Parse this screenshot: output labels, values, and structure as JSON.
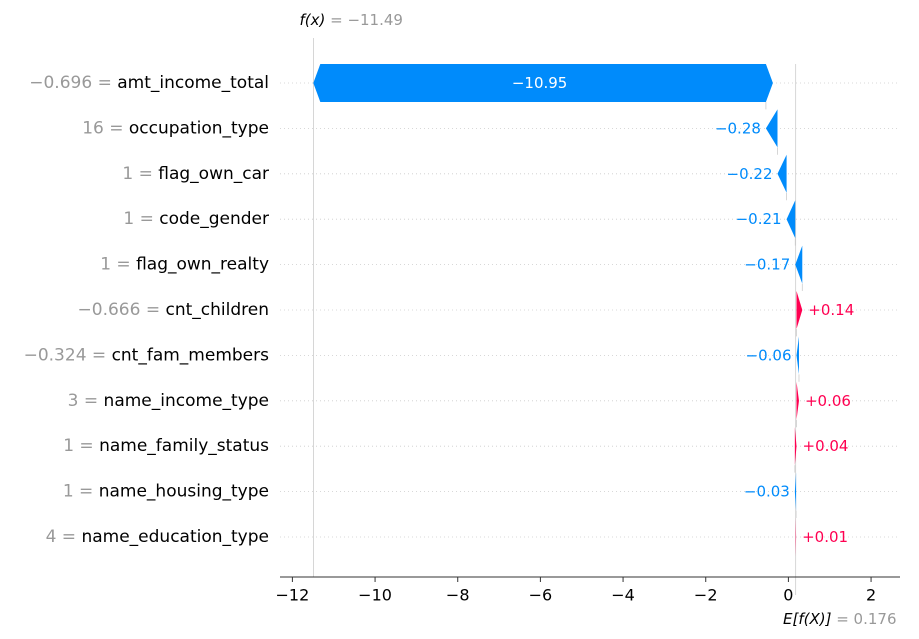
{
  "chart_data": {
    "type": "waterfall",
    "base_value": 0.176,
    "output_value": -11.49,
    "fx_label": "f(x)",
    "fx_value_text": "= −11.49",
    "efx_label": "E[f(X)]",
    "efx_value_text": "= 0.176",
    "xlim": [
      -12.3,
      2.7
    ],
    "x_ticks": [
      -12,
      -10,
      -8,
      -6,
      -4,
      -2,
      0,
      2
    ],
    "x_tick_labels": [
      "−12",
      "−10",
      "−8",
      "−6",
      "−4",
      "−2",
      "0",
      "2"
    ],
    "rows": [
      {
        "value_text": "−0.696 =",
        "feature": "amt_income_total",
        "contribution": -10.95,
        "label": "−10.95"
      },
      {
        "value_text": "16 =",
        "feature": "occupation_type",
        "contribution": -0.28,
        "label": "−0.28"
      },
      {
        "value_text": "1 =",
        "feature": "flag_own_car",
        "contribution": -0.22,
        "label": "−0.22"
      },
      {
        "value_text": "1 =",
        "feature": "code_gender",
        "contribution": -0.21,
        "label": "−0.21"
      },
      {
        "value_text": "1 =",
        "feature": "flag_own_realty",
        "contribution": -0.17,
        "label": "−0.17"
      },
      {
        "value_text": "−0.666 =",
        "feature": "cnt_children",
        "contribution": 0.14,
        "label": "+0.14"
      },
      {
        "value_text": "−0.324 =",
        "feature": "cnt_fam_members",
        "contribution": -0.06,
        "label": "−0.06"
      },
      {
        "value_text": "3 =",
        "feature": "name_income_type",
        "contribution": 0.06,
        "label": "+0.06"
      },
      {
        "value_text": "1 =",
        "feature": "name_family_status",
        "contribution": 0.04,
        "label": "+0.04"
      },
      {
        "value_text": "1 =",
        "feature": "name_housing_type",
        "contribution": -0.03,
        "label": "−0.03"
      },
      {
        "value_text": "4 =",
        "feature": "name_education_type",
        "contribution": 0.01,
        "label": "+0.01"
      }
    ],
    "colors": {
      "negative": "#008bfb",
      "positive": "#ff0051",
      "muted_text": "#999999",
      "text": "#000000",
      "axis": "#333333",
      "gridline": "#cccccc"
    }
  }
}
